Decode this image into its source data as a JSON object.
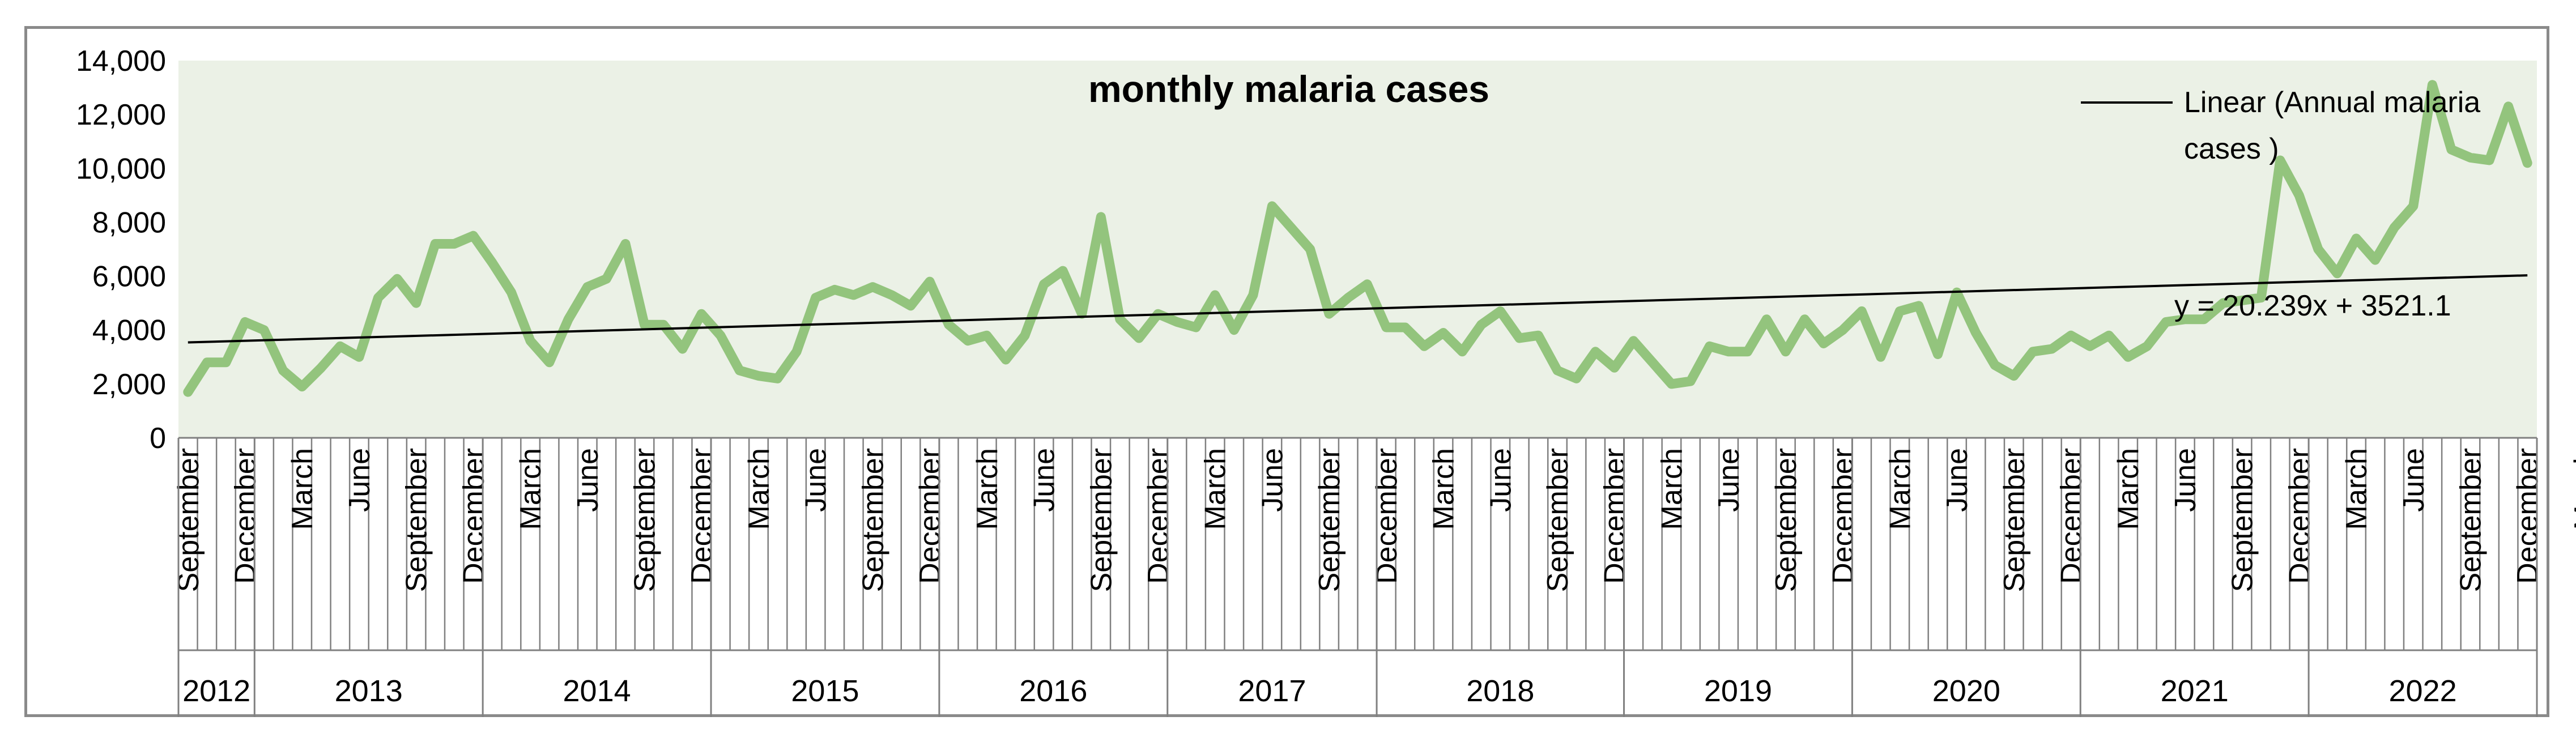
{
  "chart_data": {
    "type": "line",
    "title": "monthly malaria cases",
    "legend": {
      "entry": "Linear (Annual malaria cases )",
      "entry_lines": [
        "Linear (Annual malaria",
        "cases )"
      ],
      "position": "top-right"
    },
    "trendline": {
      "slope": 20.239,
      "intercept": 3521.1,
      "equation": "y = 20.239x + 3521.1"
    },
    "ylim": [
      0,
      14000
    ],
    "y_ticks": [
      0,
      2000,
      4000,
      6000,
      8000,
      10000,
      12000,
      14000
    ],
    "y_tick_labels": [
      "0",
      "2,000",
      "4,000",
      "6,000",
      "8,000",
      "10,000",
      "12,000",
      "14,000"
    ],
    "colors": {
      "line": "#93c47d",
      "plot_bg": "#ebf1e6",
      "trend": "#000000",
      "grid": "#808080",
      "frame": "#8a8a8a"
    },
    "month_labels": [
      "September",
      "December",
      "March",
      "June",
      "September",
      "December",
      "March",
      "June",
      "September",
      "December",
      "March",
      "June",
      "September",
      "December",
      "March",
      "June",
      "September",
      "December",
      "March",
      "June",
      "September",
      "December",
      "March",
      "June",
      "September",
      "December",
      "March",
      "June",
      "September",
      "December",
      "March",
      "June",
      "September",
      "December",
      "March",
      "June",
      "September",
      "December",
      "March",
      "June",
      "September",
      "December",
      "March",
      "June",
      "September",
      "December"
    ],
    "month_label_index": [
      0,
      3,
      6,
      9,
      12,
      15,
      18,
      21,
      24,
      27,
      30,
      33,
      36,
      39,
      42,
      45,
      48,
      51,
      54,
      57,
      60,
      63,
      66,
      69,
      72,
      75,
      78,
      81,
      84,
      87,
      90,
      93,
      96,
      99,
      102,
      105,
      108,
      111,
      114,
      117,
      120,
      123,
      126,
      129,
      132,
      135
    ],
    "years": [
      {
        "label": "2012",
        "start": 0,
        "end": 4
      },
      {
        "label": "2013",
        "start": 4,
        "end": 16
      },
      {
        "label": "2014",
        "start": 16,
        "end": 28
      },
      {
        "label": "2015",
        "start": 28,
        "end": 40
      },
      {
        "label": "2016",
        "start": 40,
        "end": 52
      },
      {
        "label": "2017",
        "start": 52,
        "end": 63
      },
      {
        "label": "2018",
        "start": 63,
        "end": 76
      },
      {
        "label": "2019",
        "start": 76,
        "end": 88
      },
      {
        "label": "2020",
        "start": 88,
        "end": 100
      },
      {
        "label": "2021",
        "start": 100,
        "end": 112
      },
      {
        "label": "2022",
        "start": 112,
        "end": 124
      }
    ],
    "series": [
      {
        "name": "monthly malaria cases",
        "values": [
          1700,
          2800,
          2800,
          4300,
          4000,
          2500,
          1900,
          2600,
          3400,
          3000,
          5200,
          5900,
          5000,
          7200,
          7200,
          7500,
          6500,
          5400,
          3600,
          2800,
          4400,
          5600,
          5900,
          7200,
          4200,
          4200,
          3300,
          4600,
          3800,
          2500,
          2300,
          2200,
          3200,
          5200,
          5500,
          5300,
          5600,
          5300,
          4900,
          5800,
          4200,
          3600,
          3800,
          2900,
          3800,
          5700,
          6200,
          4600,
          8200,
          4400,
          3700,
          4600,
          4300,
          4100,
          5300,
          4000,
          5300,
          8600,
          7800,
          7000,
          4600,
          5200,
          5700,
          4100,
          4100,
          3400,
          3900,
          3200,
          4200,
          4700,
          3700,
          3800,
          2500,
          2200,
          3200,
          2600,
          3600,
          2800,
          2000,
          2100,
          3400,
          3200,
          3200,
          4400,
          3200,
          4400,
          3500,
          4000,
          4700,
          3000,
          4700,
          4900,
          3100,
          5400,
          3900,
          2700,
          2300,
          3200,
          3300,
          3800,
          3400,
          3800,
          3000,
          3400,
          4300,
          4400,
          4400,
          5000,
          5100,
          5200,
          10300,
          9000,
          7000,
          6100,
          7400,
          6600,
          7800,
          8600,
          13100,
          10700,
          10400,
          10300,
          12300,
          10200
        ]
      }
    ]
  }
}
